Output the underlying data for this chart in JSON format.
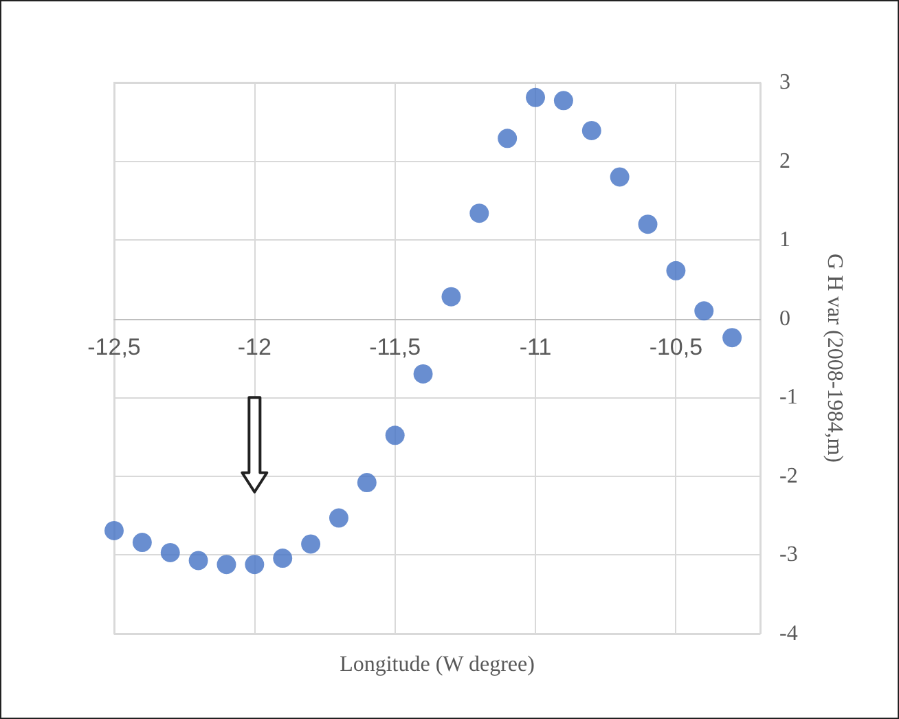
{
  "chart_data": {
    "type": "scatter",
    "xlabel": "Longitude (W degree)",
    "ylabel": "G H var (2008-1984,m)",
    "x": [
      -12.5,
      -12.4,
      -12.3,
      -12.2,
      -12.1,
      -12.0,
      -11.9,
      -11.8,
      -11.7,
      -11.6,
      -11.5,
      -11.4,
      -11.3,
      -11.2,
      -11.1,
      -11.0,
      -10.9,
      -10.8,
      -10.7,
      -10.6,
      -10.5,
      -10.4,
      -10.3
    ],
    "series": [
      {
        "color": "#4472c4",
        "values": [
          -2.69,
          -2.84,
          -2.97,
          -3.07,
          -3.12,
          -3.12,
          -3.04,
          -2.86,
          -2.53,
          -2.08,
          -1.48,
          -0.7,
          0.28,
          1.34,
          2.29,
          2.81,
          2.77,
          2.39,
          1.8,
          1.2,
          0.61,
          0.1,
          -0.24
        ]
      }
    ],
    "xlim": [
      -12.5,
      -10.2
    ],
    "xticks": [
      {
        "value": -12.5,
        "label": "-12,5"
      },
      {
        "value": -12,
        "label": "-12"
      },
      {
        "value": -11.5,
        "label": "-11,5"
      },
      {
        "value": -11,
        "label": "-11"
      },
      {
        "value": -10.5,
        "label": "-10,5"
      }
    ],
    "ylim": [
      -4,
      3
    ],
    "yticks": [
      -4,
      -3,
      -2,
      -1,
      0,
      1,
      2,
      3
    ],
    "grid": true,
    "marker": "circle"
  }
}
